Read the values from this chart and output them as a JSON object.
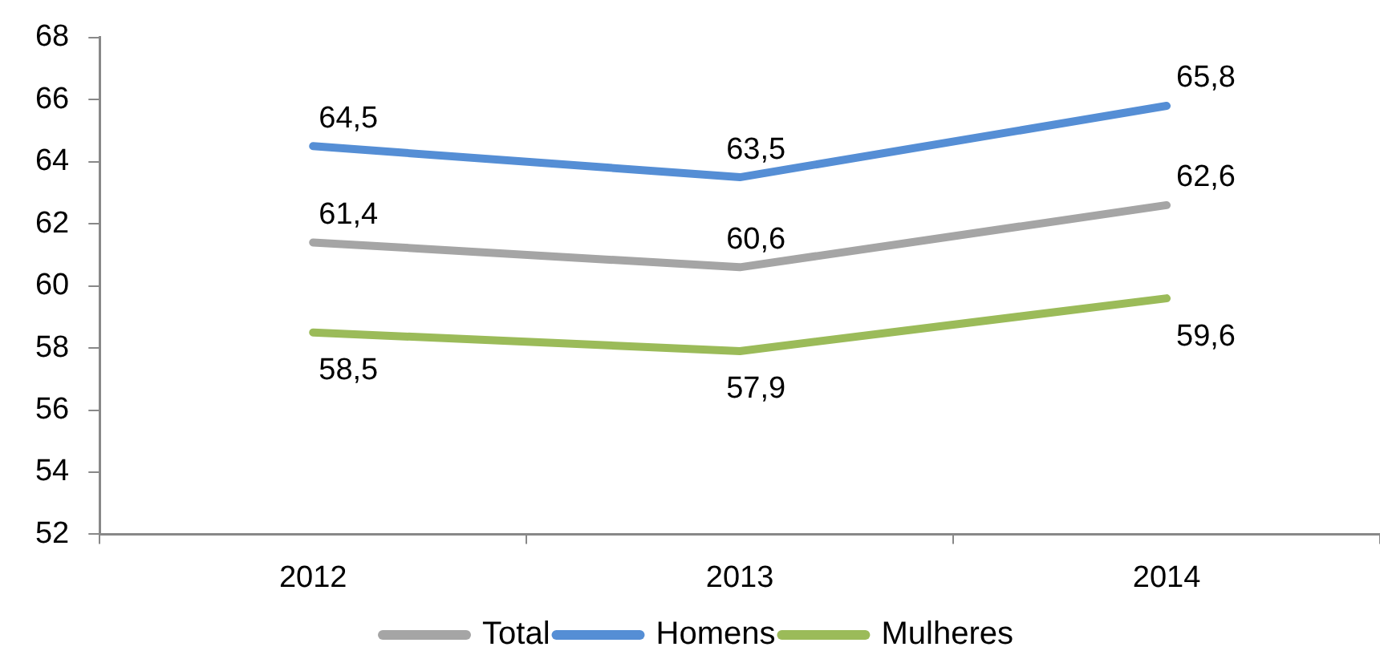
{
  "chart_data": {
    "type": "line",
    "categories": [
      "2012",
      "2013",
      "2014"
    ],
    "series": [
      {
        "name": "Total",
        "color": "#a5a5a5",
        "values": [
          61.4,
          60.6,
          62.6
        ],
        "value_labels": [
          "61,4",
          "60,6",
          "62,6"
        ]
      },
      {
        "name": "Homens",
        "color": "#558ed5",
        "values": [
          64.5,
          63.5,
          65.8
        ],
        "value_labels": [
          "64,5",
          "63,5",
          "65,8"
        ]
      },
      {
        "name": "Mulheres",
        "color": "#9bbb59",
        "values": [
          58.5,
          57.9,
          59.6
        ],
        "value_labels": [
          "58,5",
          "57,9",
          "59,6"
        ]
      }
    ],
    "ylim": [
      52,
      68
    ],
    "yticks": [
      52,
      54,
      56,
      58,
      60,
      62,
      64,
      66,
      68
    ],
    "grid": false,
    "legend": "bottom",
    "marker": "none",
    "line_style": "solid"
  }
}
